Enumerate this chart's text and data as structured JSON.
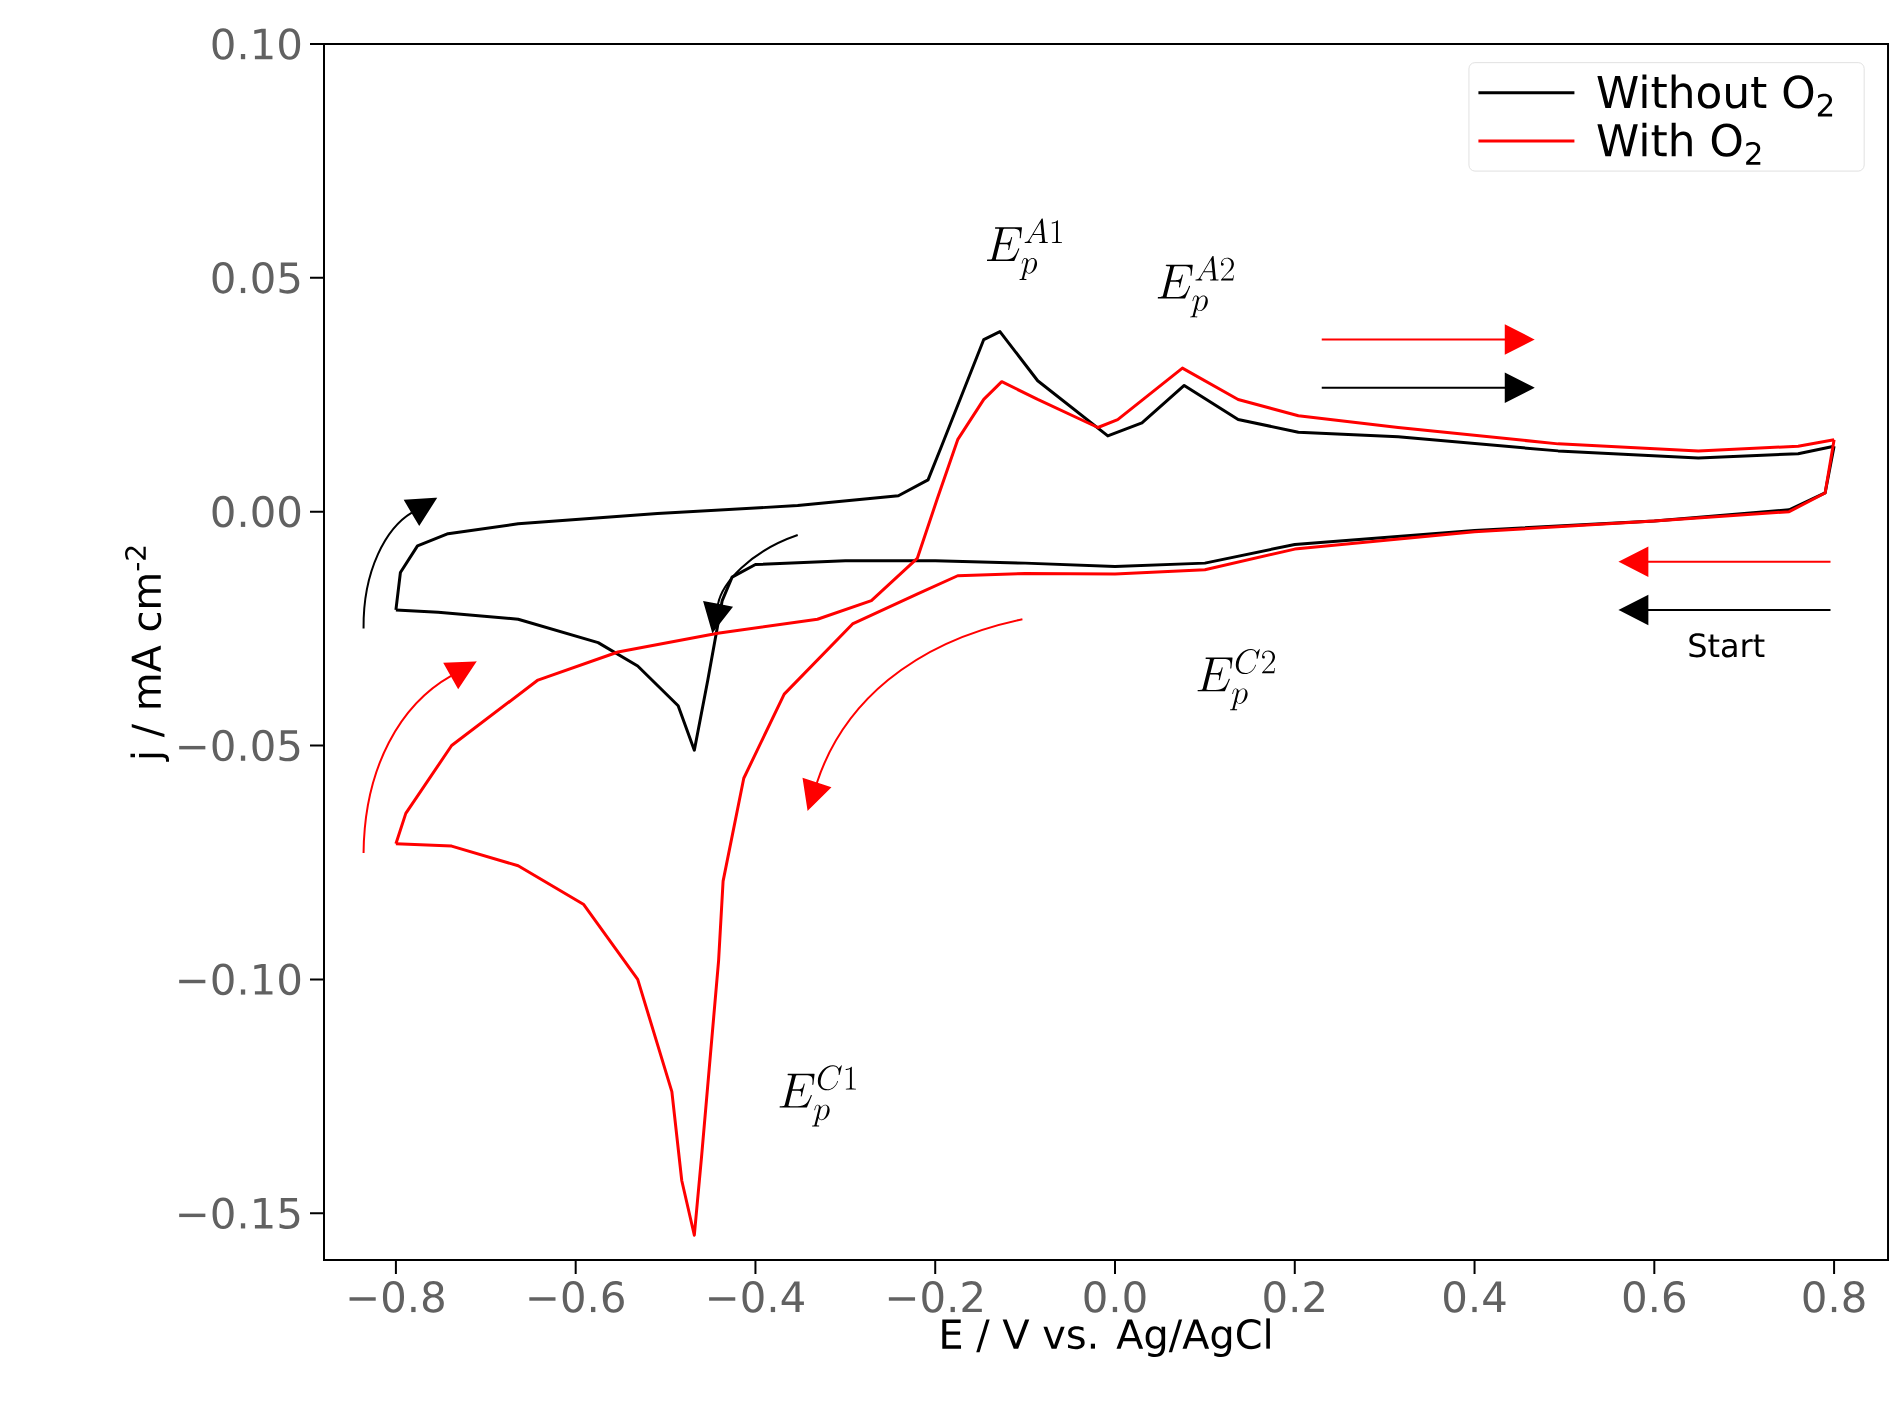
{
  "chart_data": {
    "type": "line",
    "xlabel": "E / V vs. Ag/AgCl",
    "ylabel": "j / mA cm$^{-2}$",
    "xlim": [
      -0.88,
      0.86
    ],
    "ylim": [
      -0.16,
      0.1
    ],
    "xticks": [
      {
        "value": -0.8,
        "label": "−0.8"
      },
      {
        "value": -0.6,
        "label": "−0.6"
      },
      {
        "value": -0.4,
        "label": "−0.4"
      },
      {
        "value": -0.2,
        "label": "−0.2"
      },
      {
        "value": 0,
        "label": "0.0"
      },
      {
        "value": 0.2,
        "label": "0.2"
      },
      {
        "value": 0.4,
        "label": "0.4"
      },
      {
        "value": 0.6,
        "label": "0.6"
      },
      {
        "value": 0.8,
        "label": "0.8"
      }
    ],
    "yticks": [
      {
        "value": -0.15,
        "label": "−0.15"
      },
      {
        "value": -0.1,
        "label": "−0.10"
      },
      {
        "value": -0.05,
        "label": "−0.05"
      },
      {
        "value": 0,
        "label": "0.00"
      },
      {
        "value": 0.05,
        "label": "0.05"
      },
      {
        "value": 0.1,
        "label": "0.10"
      }
    ],
    "legend": "top right",
    "series": [
      {
        "name": "Without O$_{2}$",
        "color": "#000000",
        "x": [
          -0.8,
          -0.753,
          -0.664,
          -0.575,
          -0.531,
          -0.486,
          -0.468,
          -0.453,
          -0.437,
          -0.426,
          -0.4,
          -0.3,
          -0.2,
          -0.1,
          0.0,
          0.1,
          0.2,
          0.4,
          0.6,
          0.75,
          0.79,
          0.8
        ],
        "values": [
          -0.021,
          -0.0215,
          -0.023,
          -0.028,
          -0.033,
          -0.0415,
          -0.051,
          -0.036,
          -0.019,
          -0.014,
          -0.0113,
          -0.0105,
          -0.0105,
          -0.011,
          -0.0117,
          -0.011,
          -0.007,
          -0.004,
          -0.002,
          0.0004,
          0.004,
          0.014
        ]
      },
      {
        "color": "#000000",
        "x": [
          -0.8,
          -0.795,
          -0.776,
          -0.742,
          -0.664,
          -0.509,
          -0.353,
          -0.241,
          -0.208,
          -0.193,
          -0.146,
          -0.128,
          -0.086,
          -0.008,
          0.03,
          0.077,
          0.137,
          0.204,
          0.315,
          0.493,
          0.649,
          0.76,
          0.8
        ],
        "values": [
          -0.021,
          -0.013,
          -0.0073,
          -0.0047,
          -0.0026,
          -0.0004,
          0.0013,
          0.0034,
          0.0068,
          0.014,
          0.0368,
          0.0385,
          0.028,
          0.0162,
          0.019,
          0.027,
          0.0197,
          0.017,
          0.016,
          0.013,
          0.0115,
          0.0124,
          0.014
        ]
      },
      {
        "name": "With O$_{2}$",
        "color": "#ff0000",
        "x": [
          -0.8,
          -0.738,
          -0.664,
          -0.591,
          -0.531,
          -0.493,
          -0.482,
          -0.468,
          -0.46,
          -0.441,
          -0.436,
          -0.413,
          -0.368,
          -0.292,
          -0.219,
          -0.175,
          -0.1,
          0.0,
          0.1,
          0.2,
          0.4,
          0.6,
          0.75,
          0.79,
          0.8
        ],
        "values": [
          -0.071,
          -0.0715,
          -0.0757,
          -0.084,
          -0.1,
          -0.124,
          -0.143,
          -0.1547,
          -0.138,
          -0.096,
          -0.079,
          -0.057,
          -0.039,
          -0.024,
          -0.0175,
          -0.0137,
          -0.0132,
          -0.0133,
          -0.0124,
          -0.008,
          -0.0043,
          -0.002,
          0.0,
          0.004,
          0.0154
        ]
      },
      {
        "color": "#ff0000",
        "x": [
          -0.8,
          -0.789,
          -0.738,
          -0.642,
          -0.553,
          -0.442,
          -0.331,
          -0.271,
          -0.22,
          -0.198,
          -0.175,
          -0.146,
          -0.126,
          -0.086,
          -0.019,
          0.003,
          0.075,
          0.137,
          0.204,
          0.315,
          0.493,
          0.649,
          0.76,
          0.8
        ],
        "values": [
          -0.071,
          -0.0645,
          -0.05,
          -0.036,
          -0.03,
          -0.026,
          -0.023,
          -0.019,
          -0.01,
          0.0026,
          0.0154,
          0.024,
          0.0278,
          0.024,
          0.018,
          0.0197,
          0.0307,
          0.024,
          0.0205,
          0.018,
          0.0145,
          0.013,
          0.014,
          0.0154
        ]
      }
    ],
    "annotations": [
      "E_p^{A1}",
      "E_p^{A2}",
      "E_p^{C1}",
      "E_p^{C2}",
      "Start"
    ]
  }
}
